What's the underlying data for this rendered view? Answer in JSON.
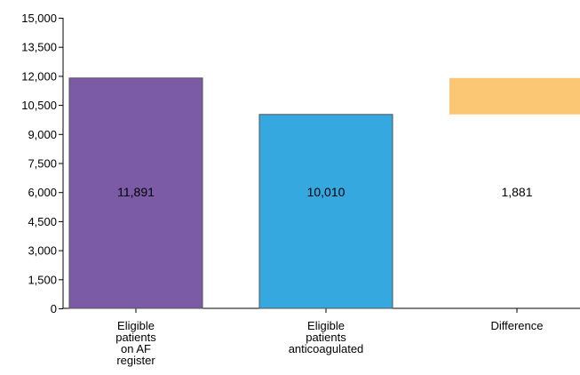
{
  "chart_data": {
    "type": "bar",
    "subtype": "waterfall",
    "title": "",
    "xlabel": "",
    "ylabel": "",
    "ylim": [
      0,
      15000
    ],
    "y_ticks": [
      0,
      1500,
      3000,
      4500,
      6000,
      7500,
      9000,
      10500,
      12000,
      13500,
      15000
    ],
    "y_tick_labels": [
      "0",
      "1,500",
      "3,000",
      "4,500",
      "6,000",
      "7,500",
      "9,000",
      "10,500",
      "12,000",
      "13,500",
      "15,000"
    ],
    "grid": false,
    "legend": "none",
    "categories": [
      "Eligible patients on AF register",
      "Eligible patients anticoagulated",
      "Difference"
    ],
    "category_label_lines": [
      [
        "Eligible",
        "patients",
        "on AF",
        "register"
      ],
      [
        "Eligible",
        "patients",
        "anticoagulated"
      ],
      [
        "Difference"
      ]
    ],
    "bars": [
      {
        "category": "Eligible patients on AF register",
        "value": 11891,
        "base": 0,
        "label": "11,891",
        "color": "#7b5aa6"
      },
      {
        "category": "Eligible patients anticoagulated",
        "value": 10010,
        "base": 0,
        "label": "10,010",
        "color": "#35a8e0"
      },
      {
        "category": "Difference",
        "value": 1881,
        "base": 10010,
        "label": "1,881",
        "color": "#fcc774"
      }
    ],
    "label_position_value": 6000
  }
}
